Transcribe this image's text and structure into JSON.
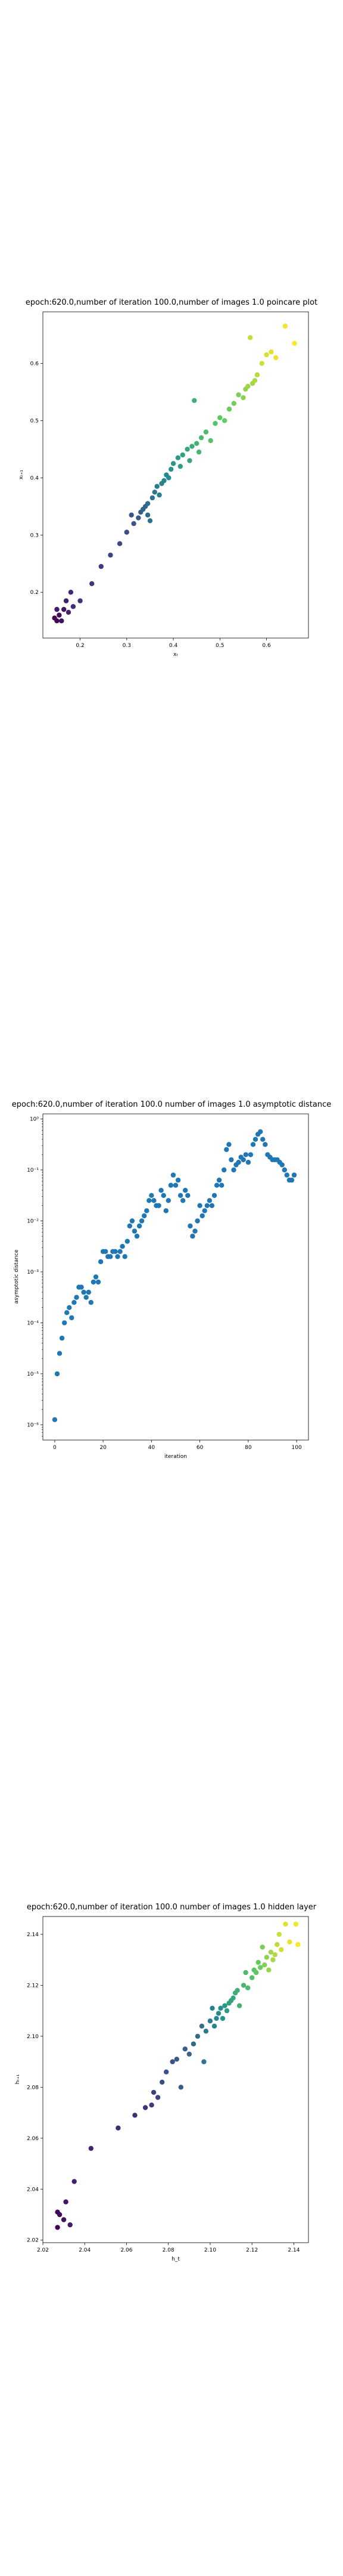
{
  "chart_data": [
    {
      "type": "scatter",
      "title": "epoch:620.0,number of iteration 100.0,number of images 1.0 poincare plot",
      "xlabel": "xₜ",
      "ylabel": "xₜ₊₁",
      "xlim": [
        0.12,
        0.69
      ],
      "ylim": [
        0.12,
        0.69
      ],
      "xticks": [
        "0.2",
        "0.3",
        "0.4",
        "0.5",
        "0.6"
      ],
      "yticks": [
        "0.2",
        "0.3",
        "0.4",
        "0.5",
        "0.6"
      ],
      "colormap": "viridis",
      "colors": [
        "#440154",
        "#3b528b",
        "#21918c",
        "#5ec962",
        "#fde725"
      ],
      "grid": false,
      "points": [
        [
          0.145,
          0.155
        ],
        [
          0.15,
          0.15
        ],
        [
          0.155,
          0.16
        ],
        [
          0.16,
          0.15
        ],
        [
          0.165,
          0.17
        ],
        [
          0.15,
          0.17
        ],
        [
          0.17,
          0.185
        ],
        [
          0.175,
          0.165
        ],
        [
          0.18,
          0.2
        ],
        [
          0.185,
          0.175
        ],
        [
          0.2,
          0.185
        ],
        [
          0.225,
          0.215
        ],
        [
          0.245,
          0.245
        ],
        [
          0.265,
          0.265
        ],
        [
          0.285,
          0.285
        ],
        [
          0.3,
          0.305
        ],
        [
          0.31,
          0.335
        ],
        [
          0.315,
          0.32
        ],
        [
          0.325,
          0.33
        ],
        [
          0.33,
          0.34
        ],
        [
          0.335,
          0.345
        ],
        [
          0.34,
          0.35
        ],
        [
          0.345,
          0.335
        ],
        [
          0.345,
          0.355
        ],
        [
          0.35,
          0.325
        ],
        [
          0.355,
          0.365
        ],
        [
          0.36,
          0.375
        ],
        [
          0.365,
          0.385
        ],
        [
          0.37,
          0.37
        ],
        [
          0.375,
          0.39
        ],
        [
          0.38,
          0.395
        ],
        [
          0.385,
          0.405
        ],
        [
          0.39,
          0.4
        ],
        [
          0.395,
          0.415
        ],
        [
          0.4,
          0.425
        ],
        [
          0.41,
          0.435
        ],
        [
          0.415,
          0.42
        ],
        [
          0.42,
          0.44
        ],
        [
          0.43,
          0.45
        ],
        [
          0.435,
          0.43
        ],
        [
          0.44,
          0.455
        ],
        [
          0.445,
          0.535
        ],
        [
          0.45,
          0.46
        ],
        [
          0.455,
          0.445
        ],
        [
          0.46,
          0.47
        ],
        [
          0.47,
          0.48
        ],
        [
          0.48,
          0.465
        ],
        [
          0.49,
          0.495
        ],
        [
          0.5,
          0.505
        ],
        [
          0.51,
          0.5
        ],
        [
          0.52,
          0.52
        ],
        [
          0.53,
          0.53
        ],
        [
          0.54,
          0.545
        ],
        [
          0.55,
          0.54
        ],
        [
          0.555,
          0.555
        ],
        [
          0.56,
          0.56
        ],
        [
          0.57,
          0.565
        ],
        [
          0.575,
          0.57
        ],
        [
          0.58,
          0.58
        ],
        [
          0.565,
          0.645
        ],
        [
          0.59,
          0.6
        ],
        [
          0.6,
          0.615
        ],
        [
          0.61,
          0.62
        ],
        [
          0.62,
          0.61
        ],
        [
          0.64,
          0.665
        ],
        [
          0.66,
          0.635
        ]
      ]
    },
    {
      "type": "scatter",
      "title": "epoch:620.0,number of iteration 100.0  number of images 1.0 asymptotic distance",
      "xlabel": "iteration",
      "ylabel": "asymptotic distance",
      "xlim": [
        -4.9,
        104.9
      ],
      "ylog": true,
      "ylim_log10": [
        -6.3,
        0.1
      ],
      "xticks": [
        0,
        20,
        40,
        60,
        80,
        100
      ],
      "yticks": [
        "10⁻⁶",
        "10⁻⁵",
        "10⁻⁴",
        "10⁻³",
        "10⁻²",
        "10⁻¹",
        "10⁰"
      ],
      "color": "#1f77b4",
      "grid": false,
      "log10_values": [
        -5.9,
        -5.0,
        -4.6,
        -4.3,
        -4.0,
        -3.8,
        -3.7,
        -3.9,
        -3.6,
        -3.5,
        -3.3,
        -3.3,
        -3.4,
        -3.5,
        -3.4,
        -3.6,
        -3.2,
        -3.1,
        -3.2,
        -2.8,
        -2.6,
        -2.6,
        -2.7,
        -2.7,
        -2.6,
        -2.6,
        -2.7,
        -2.6,
        -2.5,
        -2.7,
        -2.4,
        -2.1,
        -2.0,
        -2.2,
        -2.3,
        -2.1,
        -2.0,
        -1.9,
        -1.8,
        -1.6,
        -1.5,
        -1.6,
        -1.7,
        -1.7,
        -1.4,
        -1.5,
        -1.8,
        -1.6,
        -1.3,
        -1.1,
        -1.3,
        -1.2,
        -1.5,
        -1.6,
        -1.4,
        -1.5,
        -2.1,
        -2.3,
        -2.2,
        -2.0,
        -1.7,
        -1.9,
        -1.8,
        -1.7,
        -1.6,
        -1.7,
        -1.5,
        -1.3,
        -1.2,
        -1.3,
        -1.0,
        -0.6,
        -0.5,
        -0.8,
        -1.0,
        -0.9,
        -0.85,
        -0.75,
        -0.8,
        -0.7,
        -0.85,
        -0.7,
        -0.5,
        -0.4,
        -0.3,
        -0.25,
        -0.4,
        -0.5,
        -0.7,
        -0.75,
        -0.8,
        -0.8,
        -0.8,
        -0.85,
        -0.9,
        -1.0,
        -1.1,
        -1.2,
        -1.2,
        -1.1
      ]
    },
    {
      "type": "scatter",
      "title": "epoch:620.0,number of iteration 100.0  number of images 1.0 hidden layer",
      "xlabel": "h_t",
      "ylabel": "hₜ₊₁",
      "xlim": [
        2.02,
        2.147
      ],
      "ylim": [
        2.019,
        2.147
      ],
      "xticks": [
        "2.02",
        "2.04",
        "2.06",
        "2.08",
        "2.10",
        "2.12",
        "2.14"
      ],
      "yticks": [
        "2.02",
        "2.04",
        "2.06",
        "2.08",
        "2.10",
        "2.12",
        "2.14"
      ],
      "colormap": "viridis",
      "colors": [
        "#440154",
        "#3b528b",
        "#21918c",
        "#5ec962",
        "#fde725"
      ],
      "grid": false,
      "points": [
        [
          2.027,
          2.025
        ],
        [
          2.027,
          2.031
        ],
        [
          2.028,
          2.03
        ],
        [
          2.03,
          2.028
        ],
        [
          2.031,
          2.035
        ],
        [
          2.033,
          2.026
        ],
        [
          2.035,
          2.043
        ],
        [
          2.043,
          2.056
        ],
        [
          2.056,
          2.064
        ],
        [
          2.064,
          2.069
        ],
        [
          2.069,
          2.072
        ],
        [
          2.072,
          2.073
        ],
        [
          2.073,
          2.078
        ],
        [
          2.075,
          2.076
        ],
        [
          2.077,
          2.082
        ],
        [
          2.079,
          2.086
        ],
        [
          2.082,
          2.09
        ],
        [
          2.084,
          2.091
        ],
        [
          2.086,
          2.08
        ],
        [
          2.088,
          2.095
        ],
        [
          2.09,
          2.093
        ],
        [
          2.092,
          2.097
        ],
        [
          2.094,
          2.1
        ],
        [
          2.096,
          2.104
        ],
        [
          2.097,
          2.09
        ],
        [
          2.098,
          2.102
        ],
        [
          2.1,
          2.106
        ],
        [
          2.101,
          2.111
        ],
        [
          2.102,
          2.104
        ],
        [
          2.103,
          2.107
        ],
        [
          2.104,
          2.109
        ],
        [
          2.105,
          2.111
        ],
        [
          2.106,
          2.107
        ],
        [
          2.107,
          2.112
        ],
        [
          2.108,
          2.11
        ],
        [
          2.109,
          2.113
        ],
        [
          2.11,
          2.114
        ],
        [
          2.111,
          2.115
        ],
        [
          2.112,
          2.117
        ],
        [
          2.113,
          2.118
        ],
        [
          2.114,
          2.112
        ],
        [
          2.116,
          2.12
        ],
        [
          2.117,
          2.125
        ],
        [
          2.118,
          2.119
        ],
        [
          2.12,
          2.123
        ],
        [
          2.121,
          2.126
        ],
        [
          2.122,
          2.125
        ],
        [
          2.123,
          2.129
        ],
        [
          2.124,
          2.127
        ],
        [
          2.125,
          2.135
        ],
        [
          2.126,
          2.128
        ],
        [
          2.127,
          2.131
        ],
        [
          2.128,
          2.126
        ],
        [
          2.129,
          2.133
        ],
        [
          2.13,
          2.13
        ],
        [
          2.131,
          2.132
        ],
        [
          2.132,
          2.136
        ],
        [
          2.133,
          2.14
        ],
        [
          2.134,
          2.134
        ],
        [
          2.136,
          2.144
        ],
        [
          2.138,
          2.137
        ],
        [
          2.141,
          2.144
        ],
        [
          2.142,
          2.136
        ]
      ]
    }
  ]
}
